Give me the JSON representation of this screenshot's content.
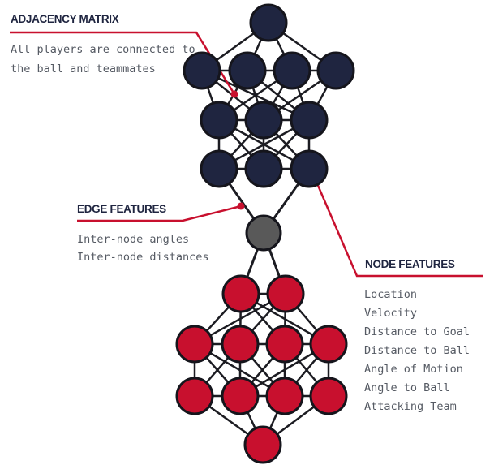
{
  "colors": {
    "navy": "#1f2540",
    "red": "#c8102e",
    "gray": "#595959",
    "edge": "#1c1c22",
    "node_outline": "#15151c",
    "callout": "#c8102e"
  },
  "labels": {
    "adjacency": {
      "title": "ADJACENCY MATRIX",
      "lines": [
        "All players are connected to",
        "the ball and teammates"
      ]
    },
    "edge_features": {
      "title": "EDGE FEATURES",
      "lines": [
        "Inter-node angles",
        "Inter-node distances"
      ]
    },
    "node_features": {
      "title": "NODE FEATURES",
      "lines": [
        "Location",
        "Velocity",
        "Distance to Goal",
        "Distance to Ball",
        "Angle of Motion",
        "Angle to Ball",
        "Attacking Team"
      ]
    }
  }
}
